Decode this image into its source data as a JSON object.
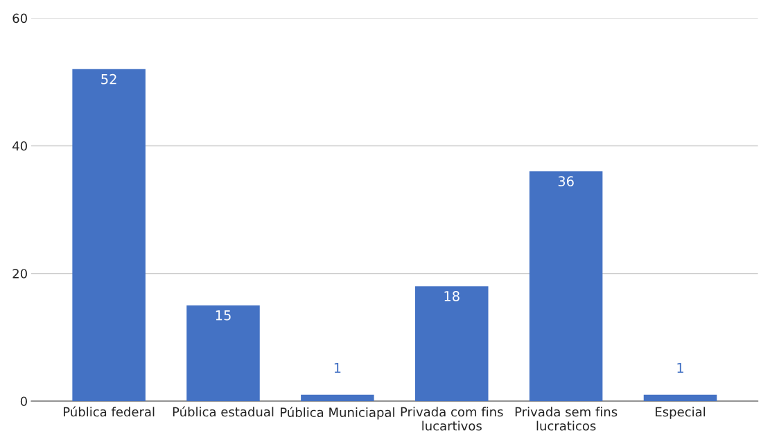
{
  "chart_data": {
    "type": "bar",
    "categories": [
      "Pública federal",
      "Pública estadual",
      "Pública Municiapal",
      "Privada com fins lucartivos",
      "Privada sem fins lucraticos",
      "Especial"
    ],
    "values": [
      52,
      15,
      1,
      18,
      36,
      1
    ],
    "color": "#4472c4",
    "ylim": [
      0,
      60
    ],
    "yticks": [
      0,
      20,
      40,
      60
    ],
    "grid": "y",
    "data_labels": true
  }
}
